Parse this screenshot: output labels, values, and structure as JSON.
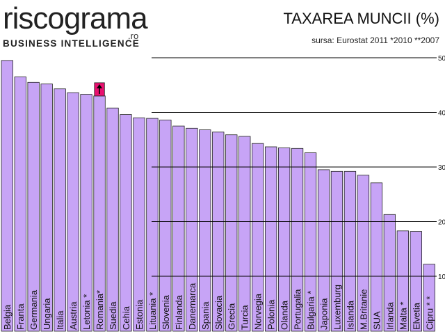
{
  "header": {
    "logo_text": "riscograma",
    "logo_tld": ".ro",
    "logo_subtitle": "BUSINESS INTELLIGENCE"
  },
  "colors": {
    "bar": "#c7a4f6",
    "highlight": "#e8106f"
  },
  "chart_data": {
    "type": "bar",
    "title": "TAXAREA MUNCII (%)",
    "subtitle": "sursa: Eurostat 2011 *2010 **2007",
    "ylim": [
      0,
      50
    ],
    "yticks": [
      10,
      20,
      30,
      40,
      50
    ],
    "grid": true,
    "highlight": {
      "category": "Romania*",
      "icon": "up-arrow-icon"
    },
    "categories": [
      "Belgia",
      "Franta",
      "Germania",
      "Ungaria",
      "Italia",
      "Austria",
      "Letonia *",
      "Romania*",
      "Suedia",
      "Cehia",
      "Estonia",
      "Lituania *",
      "Slovenia",
      "Finlanda",
      "Danemarca",
      "Spania",
      "Slovacia",
      "Grecia",
      "Turcia",
      "Norvegia",
      "Polonia",
      "Olanda",
      "Portugalia",
      "Bulgaria *",
      "Japonia",
      "Luxemburg",
      "Islanda",
      "M.Britanie",
      "SUA",
      "Irlanda",
      "Malta *",
      "Elvetia",
      "Cipru * *"
    ],
    "values": [
      49.5,
      46.5,
      45.5,
      45.2,
      44.3,
      43.6,
      43.3,
      43.0,
      40.8,
      39.6,
      39.0,
      38.9,
      38.6,
      37.5,
      37.1,
      36.8,
      36.4,
      35.9,
      35.6,
      34.3,
      33.7,
      33.5,
      33.4,
      32.6,
      29.5,
      29.2,
      29.2,
      28.5,
      27.1,
      21.3,
      18.3,
      18.2,
      12.2
    ]
  }
}
